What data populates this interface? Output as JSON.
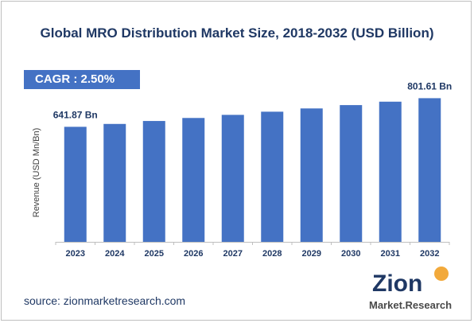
{
  "title": "Global MRO Distribution Market Size, 2018-2032 (USD Billion)",
  "cagr_label": "CAGR :  2.50%",
  "source": "source: zionmarketresearch.com",
  "logo": {
    "line1": "Zion",
    "line2": "Market.Research"
  },
  "colors": {
    "bar": "#4472c4",
    "title": "#1f3864",
    "annotation": "#1f3864",
    "axis": "#bfbfbf"
  },
  "chart_data": {
    "type": "bar",
    "title": "Global MRO Distribution Market Size, 2018-2032 (USD Billion)",
    "ylabel": "Revenue (USD Mn/Bn)",
    "xlabel": "",
    "categories": [
      "2023",
      "2024",
      "2025",
      "2026",
      "2027",
      "2028",
      "2029",
      "2030",
      "2031",
      "2032"
    ],
    "values": [
      641.87,
      657.9,
      674.4,
      691.2,
      708.5,
      726.2,
      744.4,
      763.0,
      782.1,
      801.61
    ],
    "data_labels": [
      {
        "index": 0,
        "text": "641.87 Bn"
      },
      {
        "index": 9,
        "text": "801.61 Bn"
      }
    ],
    "ylim": [
      0,
      870
    ],
    "grid": false,
    "legend": "none"
  }
}
